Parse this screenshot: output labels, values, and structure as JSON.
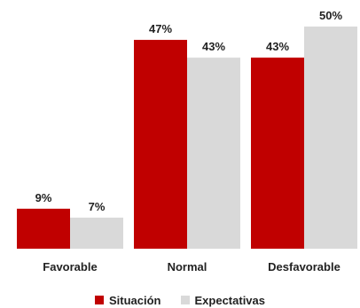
{
  "chart_data": {
    "type": "bar",
    "categories": [
      "Favorable",
      "Normal",
      "Desfavorable"
    ],
    "series": [
      {
        "name": "Situación",
        "values": [
          9,
          47,
          43
        ],
        "labels": [
          "9%",
          "47%",
          "43%"
        ],
        "color": "#c00000"
      },
      {
        "name": "Expectativas",
        "values": [
          7,
          43,
          50
        ],
        "labels": [
          "7%",
          "43%",
          "50%"
        ],
        "color": "#d9d9d9"
      }
    ],
    "ylim": [
      0,
      50
    ],
    "grid": false,
    "legend_position": "bottom"
  }
}
